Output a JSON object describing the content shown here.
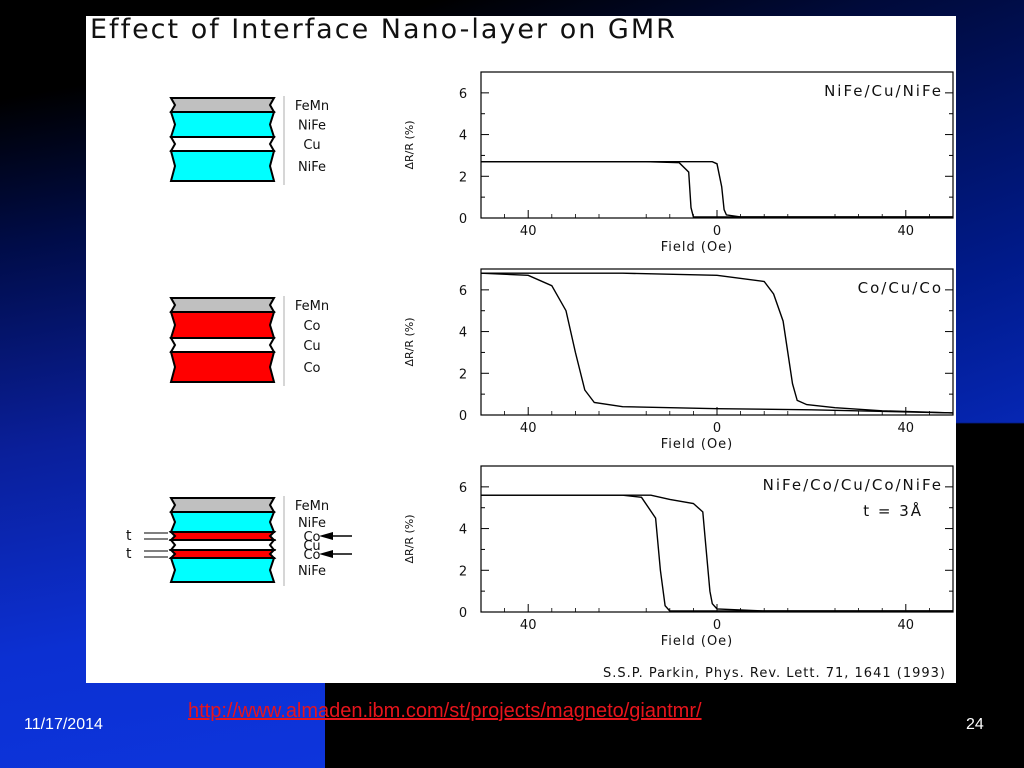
{
  "slide": {
    "title": "Effect of Interface Nano-layer on GMR",
    "citation": "S.S.P. Parkin, Phys. Rev. Lett. 71, 1641 (1993)",
    "link": "http://www.almaden.ibm.com/st/projects/magneto/giantmr/",
    "date": "11/17/2014",
    "page_number": "24"
  },
  "colors": {
    "nife": "#00ffff",
    "co": "#ff0000",
    "cu": "#ffffff",
    "femn": "#c0c0c0",
    "link": "#e8141c"
  },
  "stacks": [
    {
      "layers": [
        {
          "label": "FeMn",
          "material": "femn"
        },
        {
          "label": "NiFe",
          "material": "nife"
        },
        {
          "label": "Cu",
          "material": "cu"
        },
        {
          "label": "NiFe",
          "material": "nife"
        }
      ]
    },
    {
      "layers": [
        {
          "label": "FeMn",
          "material": "femn"
        },
        {
          "label": "Co",
          "material": "co"
        },
        {
          "label": "Cu",
          "material": "cu"
        },
        {
          "label": "Co",
          "material": "co"
        }
      ]
    },
    {
      "layers": [
        {
          "label": "FeMn",
          "material": "femn"
        },
        {
          "label": "NiFe",
          "material": "nife"
        },
        {
          "label": "Co",
          "material": "co"
        },
        {
          "label": "Cu",
          "material": "cu"
        },
        {
          "label": "Co",
          "material": "co"
        },
        {
          "label": "NiFe",
          "material": "nife"
        }
      ],
      "thickness_marks": [
        "t",
        "t"
      ]
    }
  ],
  "chart_data": [
    {
      "type": "line",
      "annotation": "NiFe/Cu/NiFe",
      "xlabel": "Field (Oe)",
      "ylabel": "ΔR/R (%)",
      "xlim": [
        -50,
        50
      ],
      "ylim": [
        0,
        7
      ],
      "x_ticks": [
        "40",
        "0",
        "40"
      ],
      "y_ticks": [
        "0",
        "2",
        "4",
        "6"
      ],
      "series": [
        {
          "x": [
            -50,
            -15,
            -8,
            -6,
            -5.5,
            -5,
            50
          ],
          "y": [
            2.7,
            2.7,
            2.65,
            2.2,
            0.5,
            0.05,
            0.05
          ]
        },
        {
          "x": [
            -50,
            -3,
            -1,
            0,
            1,
            1.5,
            2,
            5,
            50
          ],
          "y": [
            2.7,
            2.7,
            2.7,
            2.6,
            1.5,
            0.4,
            0.15,
            0.05,
            0.05
          ]
        }
      ]
    },
    {
      "type": "line",
      "annotation": "Co/Cu/Co",
      "xlabel": "Field (Oe)",
      "ylabel": "ΔR/R (%)",
      "xlim": [
        -50,
        50
      ],
      "ylim": [
        0,
        7
      ],
      "x_ticks": [
        "40",
        "0",
        "40"
      ],
      "y_ticks": [
        "0",
        "2",
        "4",
        "6"
      ],
      "series": [
        {
          "x": [
            -50,
            -40,
            -35,
            -32,
            -30,
            -28,
            -26,
            -20,
            0,
            20,
            50
          ],
          "y": [
            6.8,
            6.7,
            6.2,
            5.0,
            3.0,
            1.2,
            0.6,
            0.4,
            0.3,
            0.25,
            0.1
          ]
        },
        {
          "x": [
            -50,
            -20,
            0,
            10,
            12,
            14,
            15,
            16,
            17,
            19,
            25,
            35,
            50
          ],
          "y": [
            6.8,
            6.8,
            6.7,
            6.4,
            5.8,
            4.5,
            3.0,
            1.5,
            0.7,
            0.5,
            0.35,
            0.2,
            0.1
          ]
        }
      ]
    },
    {
      "type": "line",
      "annotation": "NiFe/Co/Cu/Co/NiFe",
      "annotation2": "t = 3Å",
      "xlabel": "Field (Oe)",
      "ylabel": "ΔR/R (%)",
      "xlim": [
        -50,
        50
      ],
      "ylim": [
        0,
        7
      ],
      "x_ticks": [
        "40",
        "0",
        "40"
      ],
      "y_ticks": [
        "0",
        "2",
        "4",
        "6"
      ],
      "series": [
        {
          "x": [
            -50,
            -20,
            -16,
            -13,
            -12,
            -11,
            -10,
            50
          ],
          "y": [
            5.6,
            5.6,
            5.5,
            4.5,
            2.0,
            0.3,
            0.05,
            0.05
          ]
        },
        {
          "x": [
            -50,
            -14,
            -10,
            -5,
            -3,
            -2.5,
            -1.5,
            -1,
            0,
            10,
            50
          ],
          "y": [
            5.6,
            5.6,
            5.4,
            5.2,
            4.8,
            3.5,
            1.0,
            0.4,
            0.15,
            0.05,
            0.05
          ]
        }
      ]
    }
  ]
}
